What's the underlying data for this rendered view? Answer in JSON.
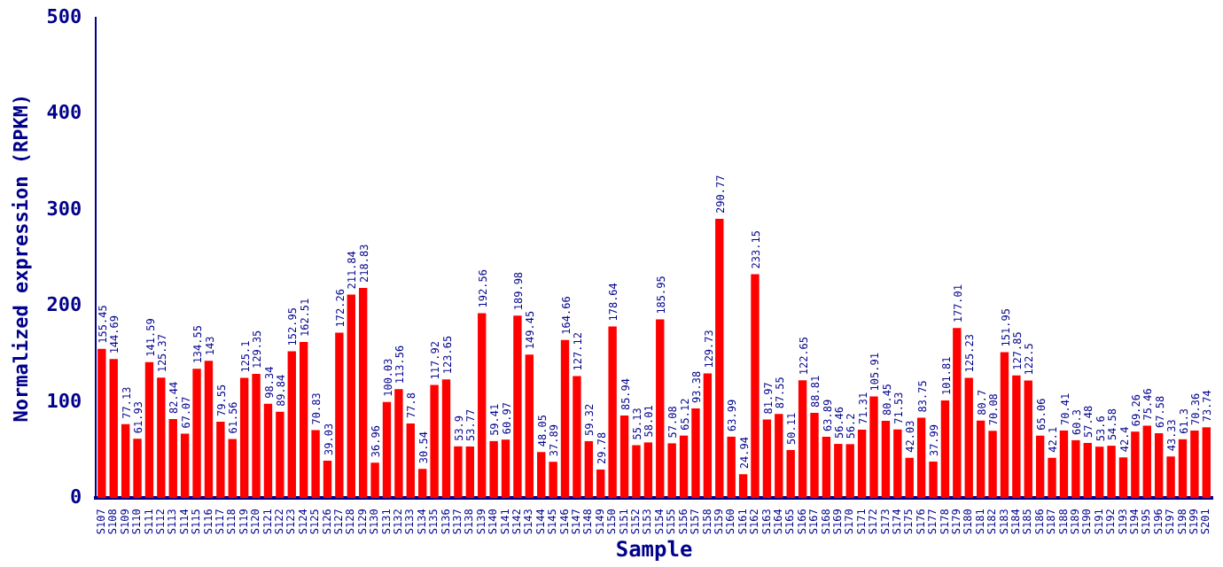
{
  "chart_data": {
    "type": "bar",
    "xlabel": "Sample",
    "ylabel": "Normalized expression (RPKM)",
    "categories": [
      "S107",
      "S108",
      "S109",
      "S110",
      "S111",
      "S112",
      "S113",
      "S114",
      "S115",
      "S116",
      "S117",
      "S118",
      "S119",
      "S120",
      "S121",
      "S122",
      "S123",
      "S124",
      "S125",
      "S126",
      "S127",
      "S128",
      "S129",
      "S130",
      "S131",
      "S132",
      "S133",
      "S134",
      "S135",
      "S136",
      "S137",
      "S138",
      "S139",
      "S140",
      "S141",
      "S142",
      "S143",
      "S144",
      "S145",
      "S146",
      "S147",
      "S148",
      "S149",
      "S150",
      "S151",
      "S152",
      "S153",
      "S154",
      "S155",
      "S156",
      "S157",
      "S158",
      "S159",
      "S160",
      "S161",
      "S162",
      "S163",
      "S164",
      "S165",
      "S166",
      "S167",
      "S168",
      "S169",
      "S170",
      "S171",
      "S172",
      "S173",
      "S174",
      "S175",
      "S176",
      "S177",
      "S178",
      "S179",
      "S180",
      "S181",
      "S182",
      "S183",
      "S184",
      "S185",
      "S186",
      "S187",
      "S188",
      "S189",
      "S190",
      "S191",
      "S192",
      "S193",
      "S194",
      "S195",
      "S196",
      "S197",
      "S198",
      "S199",
      "S201"
    ],
    "values": [
      155.45,
      144.69,
      77.13,
      61.93,
      141.59,
      125.37,
      82.44,
      67.07,
      134.55,
      143,
      79.55,
      61.56,
      125.1,
      129.35,
      98.34,
      89.84,
      152.95,
      162.51,
      70.83,
      39.03,
      172.26,
      211.84,
      218.83,
      36.96,
      100.03,
      113.56,
      77.8,
      30.54,
      117.92,
      123.65,
      53.9,
      53.77,
      192.56,
      59.41,
      60.97,
      189.98,
      149.45,
      48.05,
      37.89,
      164.66,
      127.12,
      59.32,
      29.78,
      178.64,
      85.94,
      55.13,
      58.01,
      185.95,
      57.08,
      65.12,
      93.38,
      129.73,
      290.77,
      63.99,
      24.94,
      233.15,
      81.97,
      87.55,
      50.11,
      122.65,
      88.81,
      63.89,
      56.46,
      56.2,
      71.31,
      105.91,
      80.45,
      71.53,
      42.03,
      83.75,
      37.99,
      101.81,
      177.01,
      125.23,
      80.7,
      70.08,
      151.95,
      127.85,
      122.5,
      65.06,
      42.1,
      70.41,
      60.3,
      57.48,
      53.6,
      54.58,
      42.4,
      69.26,
      75.46,
      67.58,
      43.33,
      61.3,
      70.36,
      73.74
    ],
    "color": "#ff0000",
    "ylim": [
      0,
      500
    ],
    "yticks": [
      0,
      100,
      200,
      300,
      400,
      500
    ],
    "data_labels": true,
    "grid": false,
    "legend": false
  }
}
